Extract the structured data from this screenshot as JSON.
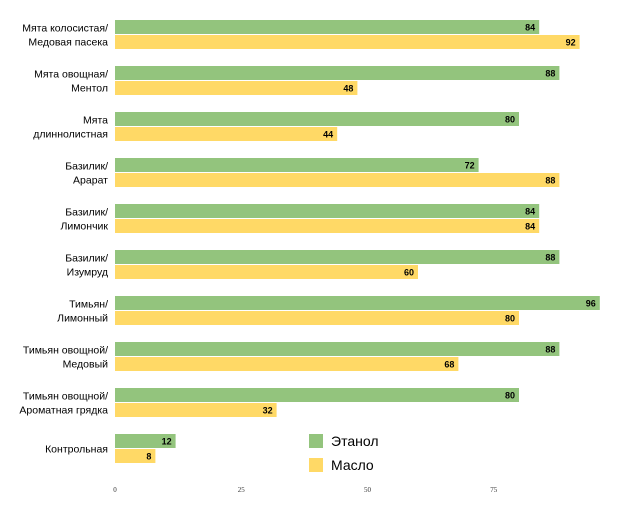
{
  "chart_data": {
    "type": "bar",
    "orientation": "horizontal",
    "categories": [
      [
        "Мята колосистая/",
        "Медовая пасека"
      ],
      [
        "Мята овощная/",
        "Ментол"
      ],
      [
        "Мята",
        "длиннолистная"
      ],
      [
        "Базилик/",
        "Арарат"
      ],
      [
        "Базилик/",
        "Лимончик"
      ],
      [
        "Базилик/",
        "Изумруд"
      ],
      [
        "Тимьян/",
        "Лимонный"
      ],
      [
        "Тимьян овощной/",
        "Медовый"
      ],
      [
        "Тимьян овощной/",
        "Ароматная грядка"
      ],
      [
        "Контрольная"
      ]
    ],
    "series": [
      {
        "name": "Этанол",
        "color": "#93c47d",
        "values": [
          84,
          88,
          80,
          72,
          84,
          88,
          96,
          88,
          80,
          12
        ]
      },
      {
        "name": "Масло",
        "color": "#ffd966",
        "values": [
          92,
          48,
          44,
          88,
          84,
          60,
          80,
          68,
          32,
          8
        ]
      }
    ],
    "xlim": [
      0,
      100
    ],
    "xticks": [
      "0",
      "25",
      "50",
      "75"
    ],
    "legend_position": "bottom-center-inside",
    "data_labels": true,
    "grid": false
  }
}
